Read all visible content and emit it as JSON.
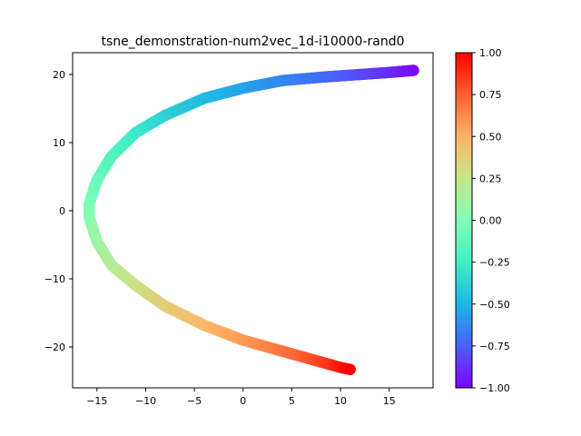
{
  "chart_data": {
    "type": "scatter",
    "title": "tsne_demonstration-num2vec_1d-i10000-rand0",
    "xlabel": "",
    "ylabel": "",
    "xlim": [
      -17.5,
      19.5
    ],
    "ylim": [
      -26,
      23.2
    ],
    "x_ticks": [
      -15,
      -10,
      -5,
      0,
      5,
      10,
      15
    ],
    "x_tick_labels": [
      "−15",
      "−10",
      "−5",
      "0",
      "5",
      "10",
      "15"
    ],
    "y_ticks": [
      -20,
      -10,
      0,
      10,
      20
    ],
    "y_tick_labels": [
      "−20",
      "−10",
      "0",
      "10",
      "20"
    ],
    "grid": false,
    "colormap": "rainbow",
    "colorbar": {
      "range": [
        -1.0,
        1.0
      ],
      "ticks": [
        -1.0,
        -0.75,
        -0.5,
        -0.25,
        0.0,
        0.25,
        0.5,
        0.75,
        1.0
      ],
      "tick_labels": [
        "−1.00",
        "−0.75",
        "−0.50",
        "−0.25",
        "0.00",
        "0.25",
        "0.50",
        "0.75",
        "1.00"
      ],
      "stops": [
        "#8000ff",
        "#4a5ff9",
        "#1cb7e5",
        "#42f0c4",
        "#80ffb4",
        "#c3e78c",
        "#ffb464",
        "#ff5f31",
        "#ff0000"
      ]
    },
    "points": [
      {
        "x": 17.5,
        "y": 20.6,
        "c": -1.0
      },
      {
        "x": 15.0,
        "y": 20.3,
        "c": -0.9
      },
      {
        "x": 12.0,
        "y": 20.0,
        "c": -0.82
      },
      {
        "x": 8.0,
        "y": 19.6,
        "c": -0.72
      },
      {
        "x": 4.0,
        "y": 19.1,
        "c": -0.65
      },
      {
        "x": 0.0,
        "y": 18.0,
        "c": -0.57
      },
      {
        "x": -4.0,
        "y": 16.5,
        "c": -0.49
      },
      {
        "x": -8.0,
        "y": 14.0,
        "c": -0.39
      },
      {
        "x": -11.0,
        "y": 11.5,
        "c": -0.3
      },
      {
        "x": -13.5,
        "y": 8.0,
        "c": -0.2
      },
      {
        "x": -15.0,
        "y": 4.5,
        "c": -0.11
      },
      {
        "x": -15.8,
        "y": 1.0,
        "c": -0.03
      },
      {
        "x": -15.8,
        "y": -1.0,
        "c": 0.02
      },
      {
        "x": -15.0,
        "y": -4.5,
        "c": 0.1
      },
      {
        "x": -13.5,
        "y": -8.0,
        "c": 0.19
      },
      {
        "x": -11.0,
        "y": -11.0,
        "c": 0.28
      },
      {
        "x": -8.0,
        "y": -14.0,
        "c": 0.37
      },
      {
        "x": -4.0,
        "y": -16.8,
        "c": 0.47
      },
      {
        "x": 0.0,
        "y": -19.0,
        "c": 0.57
      },
      {
        "x": 4.0,
        "y": -20.6,
        "c": 0.68
      },
      {
        "x": 7.5,
        "y": -22.0,
        "c": 0.8
      },
      {
        "x": 10.0,
        "y": -23.0,
        "c": 0.92
      },
      {
        "x": 11.0,
        "y": -23.3,
        "c": 1.0
      }
    ]
  }
}
